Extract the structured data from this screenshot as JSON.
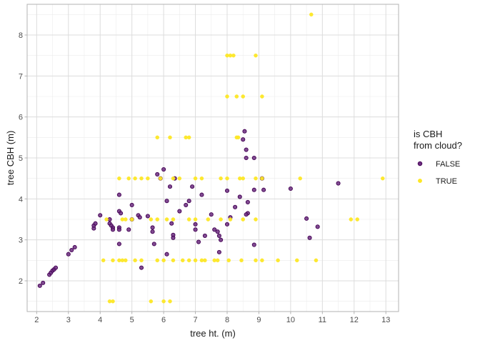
{
  "chart_data": {
    "type": "scatter",
    "xlabel": "tree ht. (m)",
    "ylabel": "tree CBH (m)",
    "xlim": [
      1.7,
      13.4
    ],
    "ylim": [
      1.25,
      8.75
    ],
    "xticks": [
      2,
      3,
      4,
      5,
      6,
      7,
      8,
      9,
      10,
      11,
      12,
      13
    ],
    "yticks": [
      2,
      3,
      4,
      5,
      6,
      7,
      8
    ],
    "grid": true,
    "legend_title_lines": [
      "is CBH",
      "from cloud?"
    ],
    "legend_placement": "right",
    "series": [
      {
        "name": "FALSE",
        "color": "#440154",
        "fill": "#6a2c7e",
        "points": [
          [
            2.1,
            1.88
          ],
          [
            2.2,
            1.95
          ],
          [
            2.4,
            2.15
          ],
          [
            2.45,
            2.2
          ],
          [
            2.5,
            2.25
          ],
          [
            2.55,
            2.28
          ],
          [
            2.6,
            2.32
          ],
          [
            3.0,
            2.65
          ],
          [
            3.1,
            2.75
          ],
          [
            3.2,
            2.82
          ],
          [
            3.8,
            3.28
          ],
          [
            3.8,
            3.35
          ],
          [
            3.85,
            3.4
          ],
          [
            4.0,
            3.6
          ],
          [
            4.3,
            3.5
          ],
          [
            4.3,
            3.4
          ],
          [
            4.35,
            3.35
          ],
          [
            4.4,
            3.3
          ],
          [
            4.4,
            3.25
          ],
          [
            4.6,
            4.1
          ],
          [
            4.6,
            3.7
          ],
          [
            4.65,
            3.65
          ],
          [
            4.6,
            3.3
          ],
          [
            4.6,
            3.25
          ],
          [
            4.6,
            2.9
          ],
          [
            4.9,
            3.25
          ],
          [
            5.0,
            3.85
          ],
          [
            5.0,
            3.5
          ],
          [
            5.2,
            3.6
          ],
          [
            5.25,
            3.55
          ],
          [
            5.3,
            2.32
          ],
          [
            5.5,
            3.58
          ],
          [
            5.65,
            3.3
          ],
          [
            5.65,
            3.2
          ],
          [
            5.7,
            2.9
          ],
          [
            5.8,
            4.6
          ],
          [
            5.9,
            4.5
          ],
          [
            6.0,
            4.72
          ],
          [
            6.1,
            3.95
          ],
          [
            6.1,
            2.65
          ],
          [
            6.2,
            4.3
          ],
          [
            6.25,
            3.4
          ],
          [
            6.3,
            3.12
          ],
          [
            6.3,
            3.05
          ],
          [
            6.35,
            4.5
          ],
          [
            6.5,
            3.7
          ],
          [
            6.7,
            3.85
          ],
          [
            6.8,
            3.95
          ],
          [
            6.9,
            4.3
          ],
          [
            7.0,
            3.38
          ],
          [
            7.0,
            3.25
          ],
          [
            7.1,
            2.95
          ],
          [
            7.2,
            4.1
          ],
          [
            7.3,
            3.1
          ],
          [
            7.5,
            3.62
          ],
          [
            7.6,
            3.25
          ],
          [
            7.7,
            3.2
          ],
          [
            7.75,
            3.1
          ],
          [
            7.75,
            2.7
          ],
          [
            7.8,
            3.0
          ],
          [
            8.0,
            4.2
          ],
          [
            8.0,
            3.38
          ],
          [
            8.1,
            3.55
          ],
          [
            8.25,
            3.8
          ],
          [
            8.4,
            4.05
          ],
          [
            8.5,
            5.45
          ],
          [
            8.55,
            5.65
          ],
          [
            8.6,
            5.2
          ],
          [
            8.65,
            3.92
          ],
          [
            8.65,
            3.65
          ],
          [
            8.6,
            3.62
          ],
          [
            8.6,
            5.0
          ],
          [
            8.85,
            5.0
          ],
          [
            8.85,
            4.22
          ],
          [
            8.85,
            2.88
          ],
          [
            9.1,
            4.5
          ],
          [
            9.15,
            4.22
          ],
          [
            10.0,
            4.25
          ],
          [
            10.5,
            3.52
          ],
          [
            10.6,
            3.05
          ],
          [
            10.85,
            3.32
          ],
          [
            11.5,
            4.38
          ]
        ]
      },
      {
        "name": "TRUE",
        "color": "#fde725",
        "fill": "#fde725",
        "points": [
          [
            4.1,
            2.5
          ],
          [
            4.2,
            3.5
          ],
          [
            4.3,
            1.5
          ],
          [
            4.4,
            1.5
          ],
          [
            4.4,
            2.5
          ],
          [
            4.6,
            4.5
          ],
          [
            4.6,
            2.5
          ],
          [
            4.7,
            3.5
          ],
          [
            4.7,
            2.5
          ],
          [
            4.8,
            2.5
          ],
          [
            4.8,
            3.5
          ],
          [
            4.9,
            4.5
          ],
          [
            5.0,
            3.5
          ],
          [
            5.1,
            4.5
          ],
          [
            5.1,
            2.5
          ],
          [
            5.3,
            4.5
          ],
          [
            5.3,
            2.5
          ],
          [
            5.5,
            4.5
          ],
          [
            5.6,
            1.5
          ],
          [
            5.6,
            3.5
          ],
          [
            5.8,
            5.5
          ],
          [
            5.8,
            3.5
          ],
          [
            5.8,
            2.5
          ],
          [
            5.9,
            4.5
          ],
          [
            6.0,
            1.5
          ],
          [
            6.0,
            2.5
          ],
          [
            6.1,
            3.5
          ],
          [
            6.2,
            5.5
          ],
          [
            6.2,
            1.5
          ],
          [
            6.3,
            3.5
          ],
          [
            6.3,
            4.5
          ],
          [
            6.3,
            2.5
          ],
          [
            6.5,
            4.5
          ],
          [
            6.6,
            2.5
          ],
          [
            6.7,
            5.5
          ],
          [
            6.8,
            5.5
          ],
          [
            6.8,
            3.5
          ],
          [
            6.8,
            2.5
          ],
          [
            7.0,
            3.5
          ],
          [
            7.0,
            4.5
          ],
          [
            7.0,
            2.5
          ],
          [
            7.2,
            4.5
          ],
          [
            7.2,
            2.5
          ],
          [
            7.3,
            2.5
          ],
          [
            7.4,
            3.5
          ],
          [
            7.6,
            2.5
          ],
          [
            7.7,
            2.5
          ],
          [
            7.8,
            4.5
          ],
          [
            7.8,
            3.5
          ],
          [
            8.0,
            7.5
          ],
          [
            8.0,
            6.5
          ],
          [
            8.0,
            4.5
          ],
          [
            8.05,
            2.5
          ],
          [
            8.1,
            7.5
          ],
          [
            8.1,
            3.5
          ],
          [
            8.2,
            7.5
          ],
          [
            8.3,
            6.5
          ],
          [
            8.3,
            5.5
          ],
          [
            8.35,
            5.5
          ],
          [
            8.4,
            4.5
          ],
          [
            8.45,
            2.5
          ],
          [
            8.5,
            6.5
          ],
          [
            8.5,
            3.5
          ],
          [
            8.5,
            4.5
          ],
          [
            8.9,
            7.5
          ],
          [
            8.9,
            4.5
          ],
          [
            8.9,
            3.5
          ],
          [
            8.9,
            2.5
          ],
          [
            9.1,
            6.5
          ],
          [
            9.1,
            4.5
          ],
          [
            9.1,
            2.5
          ],
          [
            9.6,
            2.5
          ],
          [
            10.2,
            2.5
          ],
          [
            10.3,
            4.5
          ],
          [
            10.65,
            8.5
          ],
          [
            10.8,
            2.5
          ],
          [
            11.9,
            3.5
          ],
          [
            12.1,
            3.5
          ],
          [
            12.9,
            4.5
          ]
        ]
      }
    ]
  }
}
